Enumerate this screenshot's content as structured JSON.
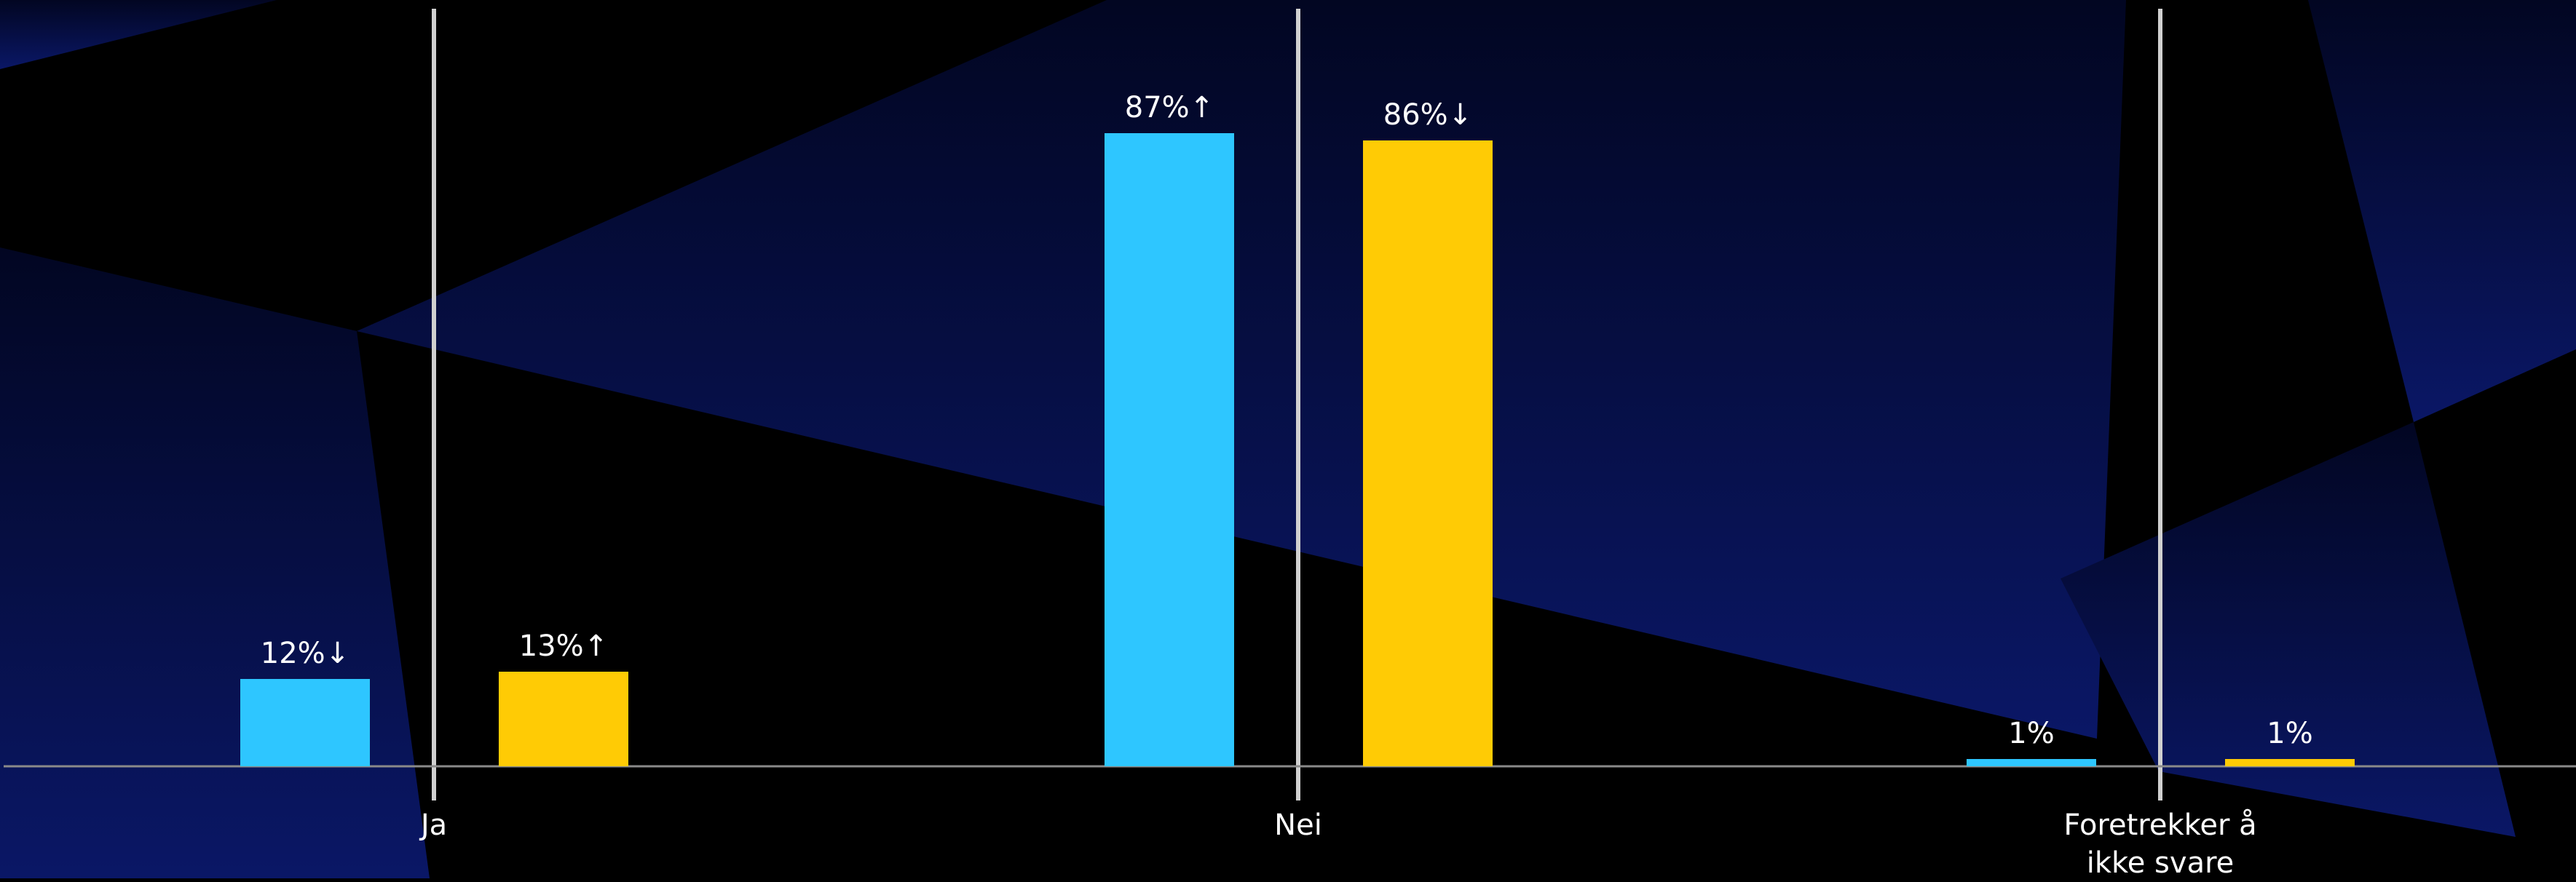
{
  "chart_data": {
    "type": "bar",
    "title": "",
    "xlabel": "",
    "ylabel": "",
    "ylim": [
      0,
      100
    ],
    "grid": false,
    "legend": "none",
    "categories": [
      "Ja",
      "Nei",
      "Foretrekker å ikke svare"
    ],
    "category_label_lines": [
      [
        "Ja"
      ],
      [
        "Nei"
      ],
      [
        "Foretrekker å",
        "ikke svare"
      ]
    ],
    "series": [
      {
        "color": "#2ec6ff",
        "values": [
          12,
          87,
          1
        ],
        "labels": [
          "12%↓",
          "87%↑",
          "1%"
        ]
      },
      {
        "color": "#ffcb05",
        "values": [
          13,
          86,
          1
        ],
        "labels": [
          "13%↑",
          "86%↓",
          "1%"
        ]
      }
    ]
  },
  "colors": {
    "background": "#000000",
    "decor": "#0a1450",
    "axis": "#8a8a8a",
    "divider": "#d0d0d0",
    "text": "#ffffff"
  }
}
